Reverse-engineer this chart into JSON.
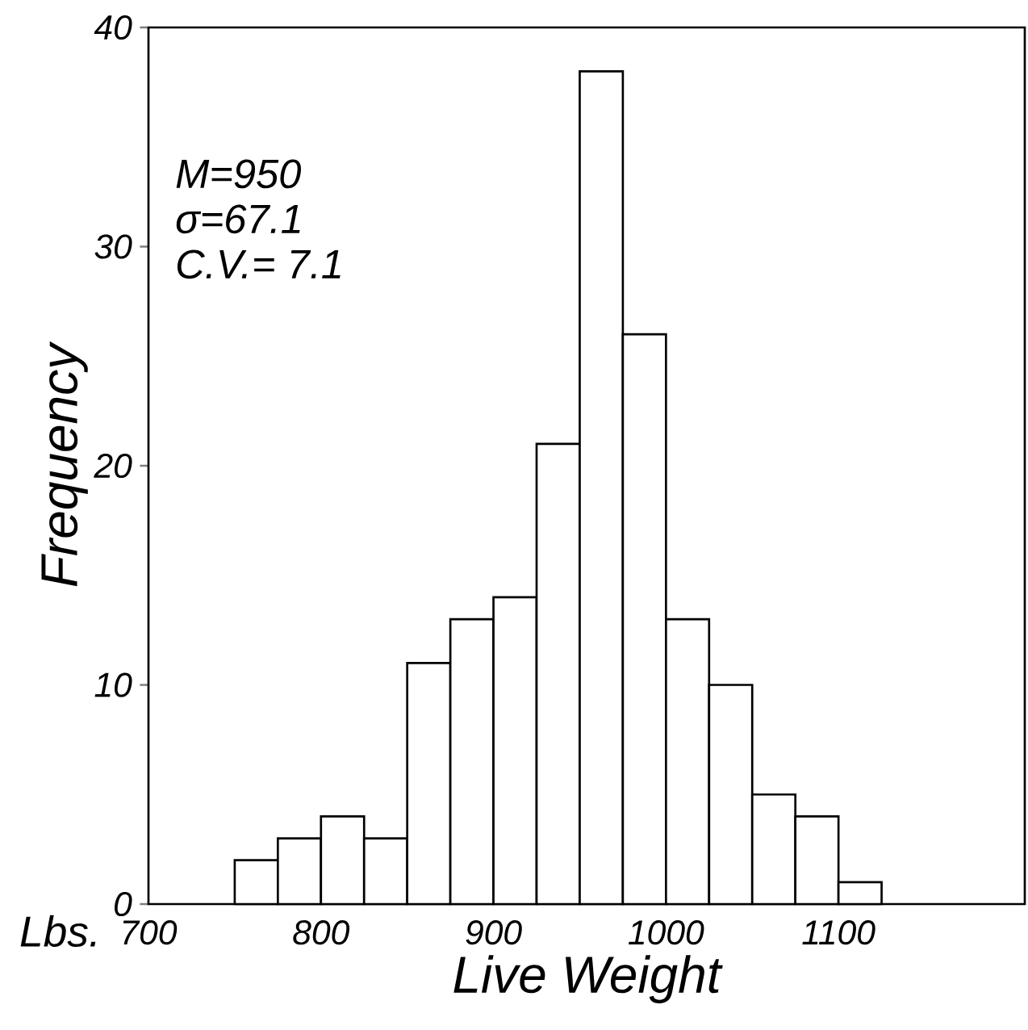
{
  "chart_data": {
    "type": "histogram",
    "xlabel": "Live Weight",
    "ylabel": "Frequency",
    "annotations": [
      "M=950",
      "σ=67.1",
      "C.V.= 7.1",
      "Lbs."
    ],
    "bins": [
      750,
      775,
      800,
      825,
      850,
      875,
      900,
      925,
      950,
      975,
      1000,
      1025,
      1050,
      1075,
      1100,
      1125
    ],
    "values": [
      2,
      3,
      4,
      3,
      11,
      13,
      14,
      21,
      38,
      26,
      13,
      10,
      5,
      4,
      1
    ],
    "color": "#ffffff",
    "xlim": [
      700,
      1208
    ],
    "ylim": [
      0,
      40
    ],
    "xticks": [
      700,
      800,
      900,
      1000,
      1100
    ],
    "yticks": [
      0,
      10,
      20,
      30,
      40
    ],
    "grid": false
  }
}
